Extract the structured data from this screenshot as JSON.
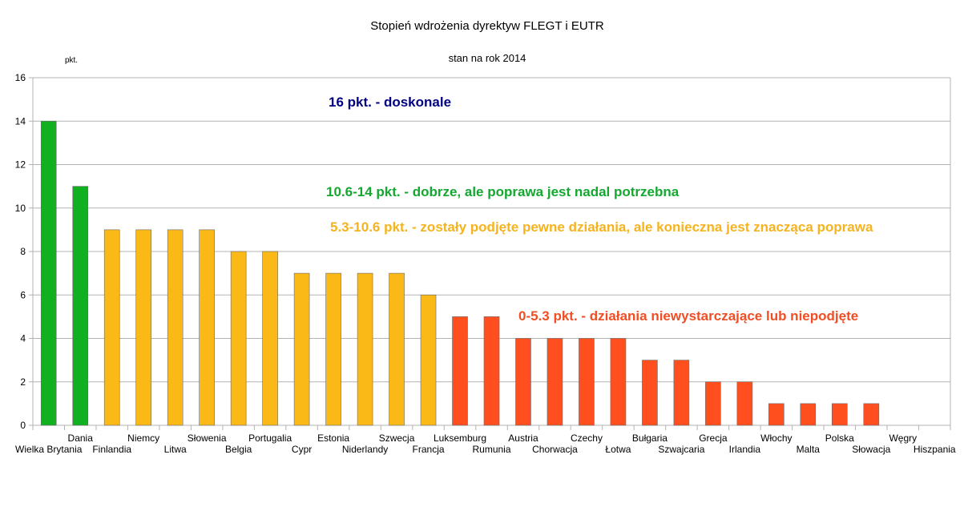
{
  "chart_data": {
    "type": "bar",
    "title": "Stopień wdrożenia dyrektyw FLEGT i EUTR",
    "subtitle": "stan na rok 2014",
    "xlabel": "",
    "ylabel": "pkt.",
    "ylim": [
      0,
      16
    ],
    "yticks": [
      0,
      2,
      4,
      6,
      8,
      10,
      12,
      14,
      16
    ],
    "grid": true,
    "categories": [
      "Wielka Brytania",
      "Dania",
      "Finlandia",
      "Niemcy",
      "Litwa",
      "Słowenia",
      "Belgia",
      "Portugalia",
      "Cypr",
      "Estonia",
      "Niderlandy",
      "Szwecja",
      "Francja",
      "Luksemburg",
      "Rumunia",
      "Austria",
      "Chorwacja",
      "Czechy",
      "Łotwa",
      "Bułgaria",
      "Szwajcaria",
      "Grecja",
      "Irlandia",
      "Włochy",
      "Malta",
      "Polska",
      "Słowacja",
      "Węgry",
      "Hiszpania"
    ],
    "values": [
      14,
      11,
      9,
      9,
      9,
      9,
      8,
      8,
      7,
      7,
      7,
      7,
      6,
      5,
      5,
      4,
      4,
      4,
      4,
      3,
      3,
      2,
      2,
      1,
      1,
      1,
      1,
      0,
      0
    ],
    "colors": {
      "green": "#10b020",
      "yellow": "#fbb917",
      "red": "#ff4f1f",
      "navy": "#000080",
      "legend_green": "#14a830",
      "legend_yellow": "#f5b31f",
      "legend_red": "#f04e24"
    },
    "annotations": [
      {
        "text": "16 pkt. - doskonale",
        "color": "#000080"
      },
      {
        "text": "10.6-14 pkt. - dobrze, ale poprawa jest nadal potrzebna",
        "color": "#14a830"
      },
      {
        "text": "5.3-10.6 pkt. - zostały podjęte pewne działania, ale konieczna jest znacząca poprawa",
        "color": "#f5b31f"
      },
      {
        "text": "0-5.3 pkt. - działania niewystarczające lub niepodjęte",
        "color": "#f04e24"
      }
    ]
  }
}
